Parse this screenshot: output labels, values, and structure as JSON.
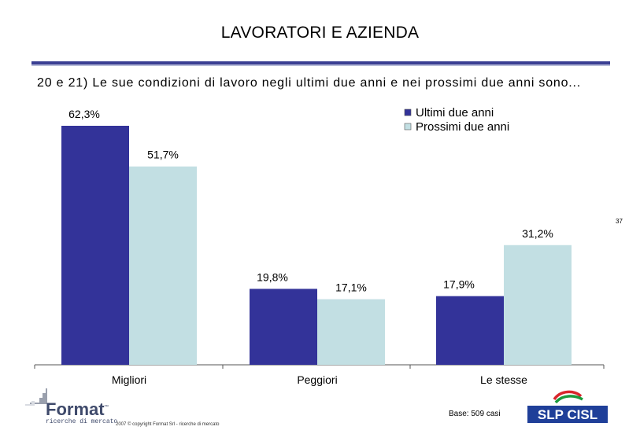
{
  "header": {
    "title": "LAVORATORI E AZIENDA",
    "question": "20 e 21) Le sue condizioni di lavoro negli ultimi due anni e nei prossimi due anni sono...",
    "page_number": "37"
  },
  "chart_data": {
    "type": "bar",
    "categories": [
      "Migliori",
      "Peggiori",
      "Le stesse"
    ],
    "series": [
      {
        "name": "Ultimi due anni",
        "values": [
          62.3,
          19.8,
          17.9
        ],
        "labels": [
          "62,3%",
          "19,8%",
          "17,9%"
        ],
        "color": "#333399"
      },
      {
        "name": "Prossimi due anni",
        "values": [
          51.7,
          17.1,
          31.2
        ],
        "labels": [
          "51,7%",
          "17,1%",
          "31,2%"
        ],
        "color": "#c2dfe3"
      }
    ],
    "ylim": [
      0,
      65
    ],
    "legend_position": "top-right"
  },
  "footer": {
    "logo_format_text": "Format",
    "logo_format_tm": "™",
    "logo_format_tagline": "ricerche di mercato",
    "copyright": "2007 © copyright Format Srl - ricerche di mercato",
    "base_note": "Base: 509 casi",
    "logo_slp_text": "SLP CISL"
  },
  "colors": {
    "accent_rule": "#3a3f93",
    "series_1": "#333399",
    "series_2": "#c2dfe3",
    "slp_blue": "#1f3f99",
    "slp_green": "#1a9a3c",
    "slp_red": "#d8262c"
  }
}
